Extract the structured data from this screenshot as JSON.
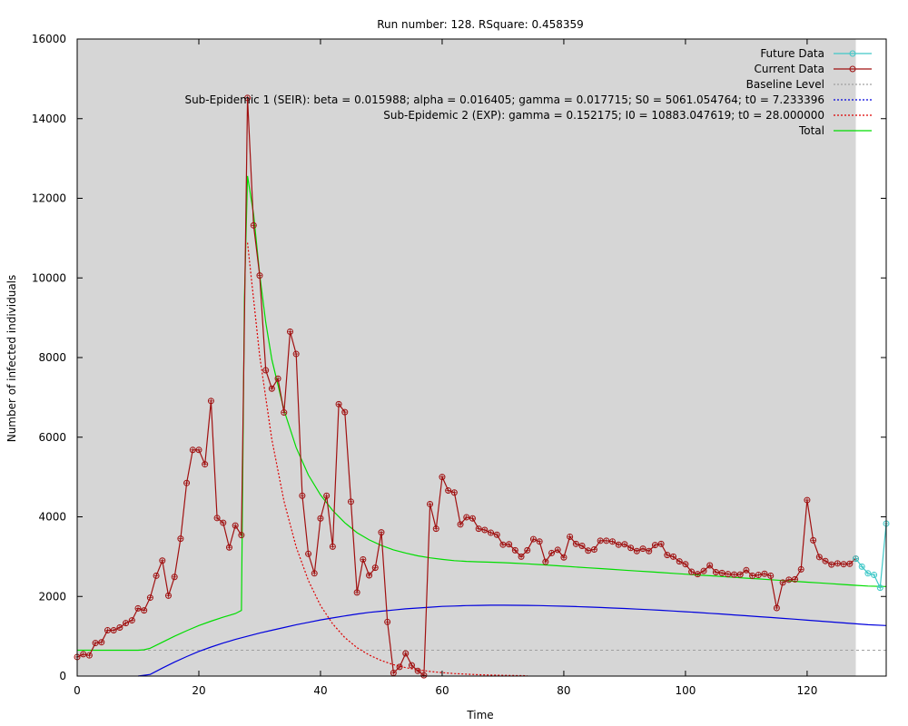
{
  "chart_data": {
    "type": "line",
    "title": "Run number: 128. RSquare: 0.458359",
    "xlabel": "Time",
    "ylabel": "Number of infected individuals",
    "xlim": [
      0,
      133
    ],
    "ylim": [
      0,
      16000
    ],
    "xticks": [
      0,
      20,
      40,
      60,
      80,
      100,
      120
    ],
    "yticks": [
      0,
      2000,
      4000,
      6000,
      8000,
      10000,
      12000,
      14000,
      16000
    ],
    "fit_end": 128,
    "legend_position": "top-right",
    "colors": {
      "fit_region": "#d6d6d6",
      "future": "#40c8c8",
      "current": "#a01010",
      "baseline": "#a0a0a0",
      "seir": "#0000dd",
      "exp": "#dd0000",
      "total": "#00dd00"
    },
    "series": [
      {
        "id": "future",
        "name": "Future Data",
        "style": "line-points",
        "color": "#40c8c8",
        "x": [
          128,
          129,
          130,
          131,
          132,
          133
        ],
        "y": [
          2950,
          2750,
          2580,
          2540,
          2220,
          3830
        ]
      },
      {
        "id": "current",
        "name": "Current Data",
        "style": "line-points",
        "color": "#a01010",
        "x": [
          0,
          1,
          2,
          3,
          4,
          5,
          6,
          7,
          8,
          9,
          10,
          11,
          12,
          13,
          14,
          15,
          16,
          17,
          18,
          19,
          20,
          21,
          22,
          23,
          24,
          25,
          26,
          27,
          28,
          29,
          30,
          31,
          32,
          33,
          34,
          35,
          36,
          37,
          38,
          39,
          40,
          41,
          42,
          43,
          44,
          45,
          46,
          47,
          48,
          49,
          50,
          51,
          52,
          53,
          54,
          55,
          56,
          57,
          58,
          59,
          60,
          61,
          62,
          63,
          64,
          65,
          66,
          67,
          68,
          69,
          70,
          71,
          72,
          73,
          74,
          75,
          76,
          77,
          78,
          79,
          80,
          81,
          82,
          83,
          84,
          85,
          86,
          87,
          88,
          89,
          90,
          91,
          92,
          93,
          94,
          95,
          96,
          97,
          98,
          99,
          100,
          101,
          102,
          103,
          104,
          105,
          106,
          107,
          108,
          109,
          110,
          111,
          112,
          113,
          114,
          115,
          116,
          117,
          118,
          119,
          120,
          121,
          122,
          123,
          124,
          125,
          126,
          127,
          128
        ],
        "y": [
          480,
          550,
          520,
          830,
          850,
          1150,
          1150,
          1220,
          1330,
          1400,
          1700,
          1650,
          1970,
          2520,
          2900,
          2020,
          2490,
          3450,
          4850,
          5680,
          5680,
          5320,
          6910,
          3970,
          3850,
          3230,
          3780,
          3540,
          14520,
          11320,
          10060,
          7680,
          7220,
          7470,
          6620,
          8650,
          8090,
          4530,
          3070,
          2580,
          3960,
          4530,
          3250,
          6830,
          6630,
          4380,
          2100,
          2930,
          2530,
          2720,
          3610,
          1360,
          80,
          230,
          570,
          270,
          130,
          20,
          4320,
          3700,
          5000,
          4660,
          4610,
          3810,
          3990,
          3960,
          3700,
          3670,
          3600,
          3550,
          3300,
          3310,
          3160,
          3000,
          3160,
          3440,
          3380,
          2870,
          3090,
          3170,
          2980,
          3500,
          3320,
          3270,
          3150,
          3180,
          3400,
          3400,
          3380,
          3300,
          3310,
          3220,
          3140,
          3200,
          3140,
          3290,
          3320,
          3040,
          3000,
          2880,
          2810,
          2620,
          2560,
          2640,
          2780,
          2610,
          2590,
          2560,
          2550,
          2550,
          2660,
          2520,
          2540,
          2570,
          2520,
          1710,
          2350,
          2420,
          2430,
          2680,
          4420,
          3410,
          2990,
          2890,
          2800,
          2830,
          2810,
          2820,
          2950
        ]
      },
      {
        "id": "baseline",
        "name": "Baseline Level",
        "style": "dotted",
        "color": "#a0a0a0",
        "value": 650
      },
      {
        "id": "seir",
        "name": "Sub-Epidemic 1 (SEIR): beta = 0.015988; alpha = 0.016405; gamma = 0.017715; S0 = 5061.054764; t0 = 7.233396",
        "style": "dotted",
        "color": "#0000dd",
        "x": [
          10,
          12,
          14,
          16,
          18,
          20,
          22,
          24,
          26,
          28,
          30,
          32,
          34,
          36,
          38,
          40,
          42,
          44,
          46,
          48,
          50,
          52,
          54,
          56,
          58,
          60,
          62,
          64,
          66,
          68,
          70,
          72,
          74,
          76,
          78,
          80,
          82,
          84,
          86,
          88,
          90,
          92,
          94,
          96,
          98,
          100,
          102,
          104,
          106,
          108,
          110,
          112,
          114,
          116,
          118,
          120,
          122,
          124,
          126,
          128,
          130,
          133
        ],
        "y": [
          0,
          40,
          200,
          350,
          490,
          620,
          730,
          830,
          920,
          1000,
          1080,
          1150,
          1220,
          1290,
          1350,
          1410,
          1460,
          1510,
          1560,
          1600,
          1630,
          1660,
          1690,
          1710,
          1730,
          1750,
          1760,
          1770,
          1775,
          1780,
          1780,
          1778,
          1775,
          1770,
          1762,
          1755,
          1745,
          1735,
          1722,
          1710,
          1697,
          1683,
          1668,
          1652,
          1635,
          1617,
          1598,
          1578,
          1558,
          1537,
          1516,
          1494,
          1472,
          1450,
          1428,
          1405,
          1382,
          1359,
          1336,
          1313,
          1290,
          1270
        ]
      },
      {
        "id": "exp",
        "name": "Sub-Epidemic 2 (EXP): gamma = 0.152175; I0 = 10883.047619; t0 = 28.000000",
        "style": "dotted",
        "color": "#dd0000",
        "x": [
          28,
          30,
          32,
          34,
          36,
          38,
          40,
          42,
          44,
          46,
          48,
          50,
          52,
          54,
          56,
          58,
          60,
          62,
          64,
          66,
          68,
          70,
          72,
          74
        ],
        "y": [
          10883,
          8040,
          5940,
          4390,
          3240,
          2400,
          1770,
          1310,
          967,
          714,
          528,
          390,
          288,
          213,
          157,
          116,
          86,
          63,
          47,
          35,
          26,
          19,
          14,
          10
        ]
      },
      {
        "id": "total",
        "name": "Total",
        "style": "line",
        "color": "#00dd00",
        "x": [
          0,
          10,
          11,
          12,
          14,
          16,
          18,
          20,
          22,
          24,
          26,
          27,
          27.5,
          28,
          29,
          30,
          31,
          32,
          34,
          36,
          38,
          40,
          42,
          44,
          46,
          48,
          50,
          52,
          54,
          56,
          58,
          60,
          62,
          64,
          66,
          68,
          70,
          72,
          74,
          76,
          78,
          80,
          82,
          84,
          86,
          88,
          90,
          92,
          94,
          96,
          98,
          100,
          102,
          104,
          106,
          108,
          110,
          112,
          114,
          116,
          118,
          120,
          122,
          124,
          126,
          128,
          130,
          133
        ],
        "y": [
          650,
          650,
          660,
          700,
          850,
          1000,
          1140,
          1270,
          1380,
          1480,
          1570,
          1650,
          9500,
          12560,
          11600,
          10090,
          8880,
          7950,
          6680,
          5740,
          5050,
          4550,
          4160,
          3850,
          3600,
          3420,
          3280,
          3170,
          3090,
          3020,
          2970,
          2930,
          2900,
          2880,
          2870,
          2860,
          2850,
          2835,
          2820,
          2800,
          2780,
          2760,
          2740,
          2720,
          2700,
          2680,
          2660,
          2640,
          2620,
          2600,
          2580,
          2560,
          2540,
          2520,
          2500,
          2480,
          2460,
          2440,
          2420,
          2400,
          2380,
          2360,
          2340,
          2320,
          2300,
          2280,
          2260,
          2250
        ]
      }
    ]
  }
}
